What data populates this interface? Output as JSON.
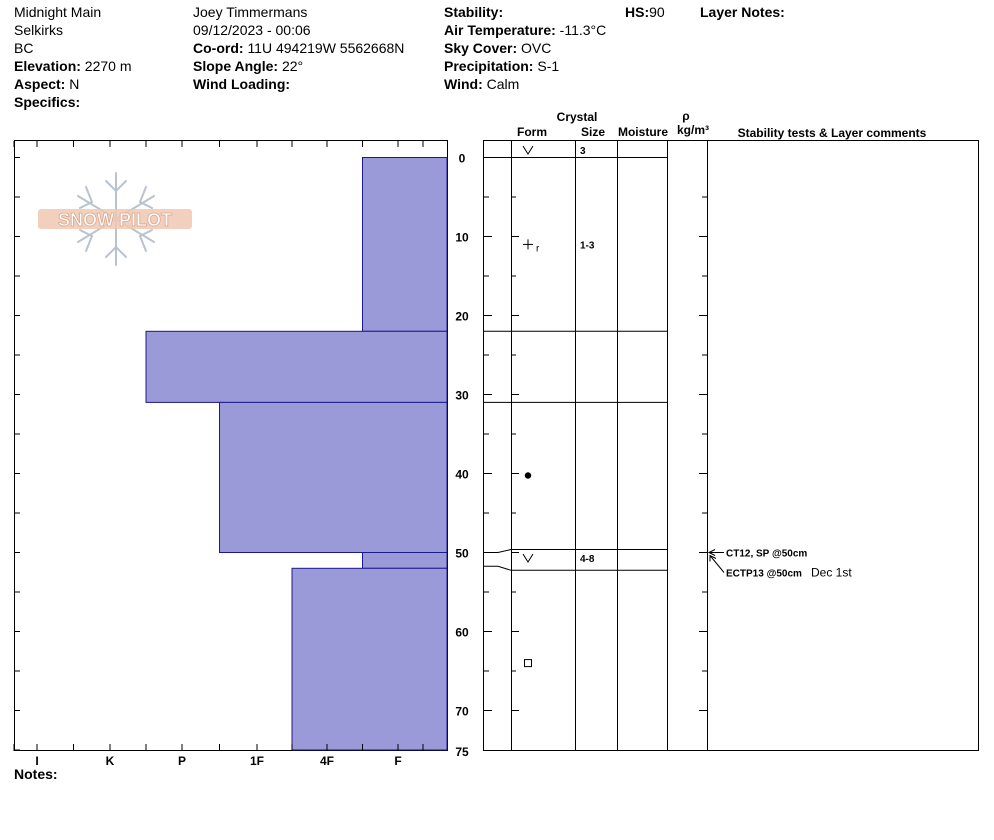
{
  "header": {
    "location": "Midnight Main",
    "range": "Selkirks",
    "province": "BC",
    "elevation_label": "Elevation:",
    "elevation": "2270 m",
    "aspect_label": "Aspect:",
    "aspect": "N",
    "specifics_label": "Specifics:",
    "observer": "Joey Timmermans",
    "datetime": "09/12/2023 - 00:06",
    "coord_label": "Co-ord:",
    "coord": "11U 494219W 5562668N",
    "slope_label": "Slope Angle:",
    "slope": "22°",
    "wind_loading_label": "Wind Loading:",
    "stability_label": "Stability:",
    "air_temp_label": "Air Temperature:",
    "air_temp": "-11.3°C",
    "sky_label": "Sky Cover:",
    "sky": "OVC",
    "precip_label": "Precipitation:",
    "precip": "S-1",
    "wind_label": "Wind:",
    "wind": "Calm",
    "hs_label": "HS:",
    "hs": "90",
    "layer_notes_label": "Layer Notes:"
  },
  "logo": {
    "text": "SNOW PILOT"
  },
  "columns": {
    "crystal": "Crystal",
    "form": "Form",
    "size": "Size",
    "moisture": "Moisture",
    "rho": "ρ",
    "density_unit": "kg/m³",
    "stability_tests": "Stability tests & Layer comments"
  },
  "notes_label": "Notes:",
  "colors": {
    "hardness_fill": "#9a9ad8",
    "hardness_stroke": "#1a1a8c"
  },
  "chart_data": {
    "type": "bar",
    "title": "",
    "hardness_categories": [
      "I",
      "K",
      "P",
      "1F",
      "4F",
      "F"
    ],
    "depth_ticks": [
      0,
      10,
      20,
      30,
      40,
      50,
      60,
      70,
      75
    ],
    "depth_range": [
      0,
      75
    ],
    "hardness_layers": [
      {
        "top": 0,
        "bottom": 22,
        "hardness": 0.5
      },
      {
        "top": 22,
        "bottom": 31,
        "hardness": 3.5
      },
      {
        "top": 31,
        "bottom": 50,
        "hardness": 2.5
      },
      {
        "top": 50,
        "bottom": 52,
        "hardness": 0.5
      },
      {
        "top": 52,
        "bottom": 75,
        "hardness": 1.5
      }
    ],
    "layer_boundaries": [
      0,
      22,
      31,
      50,
      52
    ],
    "crystals": [
      {
        "depth": 0,
        "form": "surface-hoar",
        "size": "3"
      },
      {
        "depth": 11,
        "form": "rimed-precip",
        "size": "1-3"
      },
      {
        "depth": 40,
        "form": "rounded",
        "size": ""
      },
      {
        "depth": 50.7,
        "form": "surface-hoar",
        "size": "4-8"
      },
      {
        "depth": 64,
        "form": "faceted",
        "size": ""
      }
    ],
    "stability_tests": [
      {
        "depth": 50,
        "text": "CT12, SP @50cm",
        "note": ""
      },
      {
        "depth": 50,
        "text": "ECTP13 @50cm",
        "note": "Dec 1st"
      }
    ]
  }
}
